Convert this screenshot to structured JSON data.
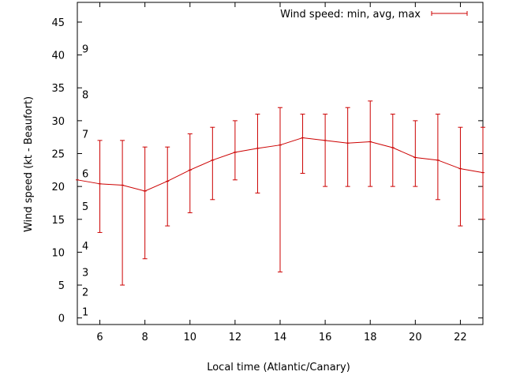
{
  "chart_data": {
    "type": "line",
    "xlabel": "Local time (Atlantic/Canary)",
    "ylabel": "Wind speed (kt - Beaufort)",
    "xlim": [
      5,
      23
    ],
    "ylim": [
      -1,
      48
    ],
    "x_ticks": [
      6,
      8,
      10,
      12,
      14,
      16,
      18,
      20,
      22
    ],
    "y_ticks": [
      0,
      5,
      10,
      15,
      20,
      25,
      30,
      35,
      40,
      45
    ],
    "beaufort_labels": [
      {
        "label": "1",
        "kt": 1
      },
      {
        "label": "2",
        "kt": 4
      },
      {
        "label": "3",
        "kt": 7
      },
      {
        "label": "4",
        "kt": 11
      },
      {
        "label": "5",
        "kt": 17
      },
      {
        "label": "6",
        "kt": 22
      },
      {
        "label": "7",
        "kt": 28
      },
      {
        "label": "8",
        "kt": 34
      },
      {
        "label": "9",
        "kt": 41
      }
    ],
    "legend": {
      "label": "Wind speed: min, avg, max",
      "position": "top-right"
    },
    "color": "#cc0000",
    "series": [
      {
        "name": "Wind speed: min, avg, max",
        "x": [
          5,
          6,
          7,
          8,
          9,
          10,
          11,
          12,
          13,
          14,
          15,
          16,
          17,
          18,
          19,
          20,
          21,
          22,
          23
        ],
        "avg": [
          21,
          20.4,
          20.2,
          19.3,
          20.8,
          22.5,
          24,
          25.2,
          25.8,
          26.3,
          27.4,
          27,
          26.6,
          26.8,
          25.9,
          24.4,
          24,
          22.7,
          22.1
        ],
        "min": [
          null,
          13,
          5,
          9,
          14,
          16,
          18,
          21,
          19,
          7,
          22,
          20,
          20,
          20,
          20,
          20,
          18,
          14,
          15
        ],
        "max": [
          null,
          27,
          27,
          26,
          26,
          28,
          29,
          30,
          31,
          32,
          31,
          31,
          32,
          33,
          31,
          30,
          31,
          29,
          29
        ]
      }
    ]
  }
}
